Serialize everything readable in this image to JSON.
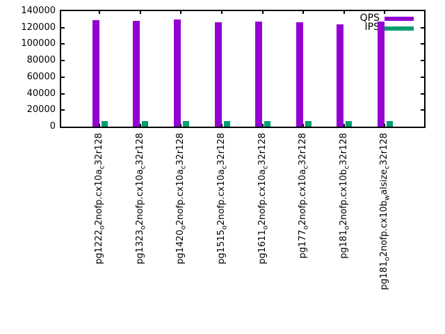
{
  "chart_data": {
    "type": "bar",
    "title": "",
    "xlabel": "",
    "ylabel": "",
    "grid": false,
    "legend_position": "top-right-inside",
    "ylim": [
      0,
      140000
    ],
    "ytick_step": 20000,
    "ytick_labels": [
      "0",
      "20000",
      "40000",
      "60000",
      "80000",
      "100000",
      "120000",
      "140000"
    ],
    "categories": [
      "pg1222_{o}2nofp.cx10a_{c}32r128",
      "pg1323_{o}2nofp.cx10a_{c}32r128",
      "pg1420_{o}2nofp.cx10a_{c}32r128",
      "pg1515_{o}2nofp.cx10a_{c}32r128",
      "pg1611_{o}2nofp.cx10a_{c}32r128",
      "pg177_{o}2nofp.cx10a_{c}32r128",
      "pg181_{o}2nofp.cx10b_{c}32r128",
      "pg181_{o}2nofp.cx10b_{w}alsize_{c}32r128"
    ],
    "series": [
      {
        "name": "QPS",
        "color": "#9400d3",
        "values": [
          129200,
          128300,
          129900,
          126400,
          127300,
          126500,
          124300,
          127000
        ]
      },
      {
        "name": "IPS",
        "color": "#009e73",
        "values": [
          6500,
          6400,
          6400,
          6600,
          6800,
          6600,
          6500,
          6400
        ]
      }
    ],
    "colors": {
      "axis": "#000000",
      "background": "#ffffff",
      "qps_bar": "#9400d3",
      "ips_bar": "#009e73"
    }
  }
}
